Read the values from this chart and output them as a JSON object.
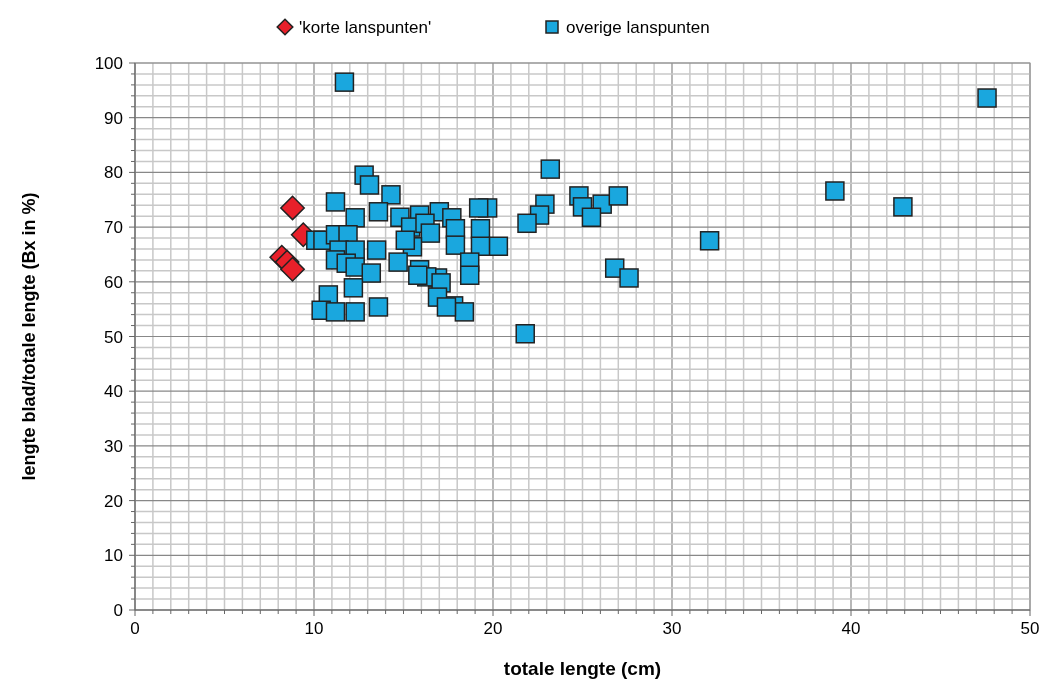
{
  "chart_data": {
    "type": "scatter",
    "xlabel": "totale lengte (cm)",
    "ylabel": "lengte blad/totale lengte (Bx in %)",
    "xlim": [
      0,
      50
    ],
    "ylim": [
      0,
      100
    ],
    "xticks": [
      0,
      {
        "value": 1,
        "label": null
      },
      {
        "value": 2,
        "label": null
      },
      {
        "value": 3,
        "label": null
      },
      {
        "value": 4,
        "label": null
      },
      {
        "value": 5,
        "label": null
      },
      {
        "value": 6,
        "label": null
      },
      {
        "value": 7,
        "label": null
      },
      {
        "value": 8,
        "label": null
      },
      {
        "value": 9,
        "label": null
      },
      10,
      {
        "value": 11,
        "label": null
      },
      {
        "value": 12,
        "label": null
      },
      {
        "value": 13,
        "label": null
      },
      {
        "value": 14,
        "label": null
      },
      {
        "value": 15,
        "label": null
      },
      {
        "value": 16,
        "label": null
      },
      {
        "value": 17,
        "label": null
      },
      {
        "value": 18,
        "label": null
      },
      {
        "value": 19,
        "label": null
      },
      20,
      {
        "value": 21,
        "label": null
      },
      {
        "value": 22,
        "label": null
      },
      {
        "value": 23,
        "label": null
      },
      {
        "value": 24,
        "label": null
      },
      {
        "value": 25,
        "label": null
      },
      {
        "value": 26,
        "label": null
      },
      {
        "value": 27,
        "label": null
      },
      {
        "value": 28,
        "label": null
      },
      {
        "value": 29,
        "label": null
      },
      30,
      {
        "value": 31,
        "label": null
      },
      {
        "value": 32,
        "label": null
      },
      {
        "value": 33,
        "label": null
      },
      {
        "value": 34,
        "label": null
      },
      {
        "value": 35,
        "label": null
      },
      {
        "value": 36,
        "label": null
      },
      {
        "value": 37,
        "label": null
      },
      {
        "value": 38,
        "label": null
      },
      {
        "value": 39,
        "label": null
      },
      40,
      {
        "value": 41,
        "label": null
      },
      {
        "value": 42,
        "label": null
      },
      {
        "value": 43,
        "label": null
      },
      {
        "value": 44,
        "label": null
      },
      {
        "value": 45,
        "label": null
      },
      {
        "value": 46,
        "label": null
      },
      {
        "value": 47,
        "label": null
      },
      {
        "value": 48,
        "label": null
      },
      {
        "value": 49,
        "label": null
      },
      50
    ],
    "yticks": [
      0,
      {
        "value": 2,
        "label": null
      },
      {
        "value": 4,
        "label": null
      },
      {
        "value": 6,
        "label": null
      },
      {
        "value": 8,
        "label": null
      },
      10,
      {
        "value": 12,
        "label": null
      },
      {
        "value": 14,
        "label": null
      },
      {
        "value": 16,
        "label": null
      },
      {
        "value": 18,
        "label": null
      },
      20,
      {
        "value": 22,
        "label": null
      },
      {
        "value": 24,
        "label": null
      },
      {
        "value": 26,
        "label": null
      },
      {
        "value": 28,
        "label": null
      },
      30,
      {
        "value": 32,
        "label": null
      },
      {
        "value": 34,
        "label": null
      },
      {
        "value": 36,
        "label": null
      },
      {
        "value": 38,
        "label": null
      },
      40,
      {
        "value": 42,
        "label": null
      },
      {
        "value": 44,
        "label": null
      },
      {
        "value": 46,
        "label": null
      },
      {
        "value": 48,
        "label": null
      },
      50,
      {
        "value": 52,
        "label": null
      },
      {
        "value": 54,
        "label": null
      },
      {
        "value": 56,
        "label": null
      },
      {
        "value": 58,
        "label": null
      },
      60,
      {
        "value": 62,
        "label": null
      },
      {
        "value": 64,
        "label": null
      },
      {
        "value": 66,
        "label": null
      },
      {
        "value": 68,
        "label": null
      },
      70,
      {
        "value": 72,
        "label": null
      },
      {
        "value": 74,
        "label": null
      },
      {
        "value": 76,
        "label": null
      },
      {
        "value": 78,
        "label": null
      },
      80,
      {
        "value": 82,
        "label": null
      },
      {
        "value": 84,
        "label": null
      },
      {
        "value": 86,
        "label": null
      },
      {
        "value": 88,
        "label": null
      },
      90,
      {
        "value": 92,
        "label": null
      },
      {
        "value": 94,
        "label": null
      },
      {
        "value": 96,
        "label": null
      },
      {
        "value": 98,
        "label": null
      },
      100
    ],
    "grid": true,
    "legend": "top",
    "series": [
      {
        "name": "'korte lanspunten'",
        "color": "#e8202a",
        "marker": "diamond",
        "x": [
          8.8,
          9.4,
          8.2,
          8.5,
          8.8
        ],
        "values": [
          73.5,
          68.6,
          64.5,
          63.6,
          62.3
        ]
      },
      {
        "name": "overige lanspunten",
        "color": "#1aa7de",
        "marker": "square",
        "x": [
          11.7,
          47.6,
          23.2,
          12.8,
          13.1,
          14.3,
          11.2,
          24.8,
          25.0,
          22.9,
          26.1,
          27.0,
          25.5,
          22.6,
          21.9,
          19.7,
          19.2,
          39.1,
          42.9,
          32.1,
          26.8,
          27.6,
          21.8,
          12.3,
          13.6,
          14.8,
          15.9,
          17.0,
          17.7,
          17.9,
          19.3,
          20.3,
          19.3,
          17.9,
          18.7,
          18.7,
          17.8,
          18.4,
          16.9,
          15.4,
          16.2,
          16.5,
          10.1,
          10.5,
          11.2,
          11.9,
          11.4,
          12.3,
          13.5,
          15.5,
          15.1,
          11.2,
          11.8,
          12.3,
          13.2,
          14.7,
          15.9,
          16.3,
          17.1,
          12.2,
          10.8,
          10.4,
          11.2,
          12.3,
          13.6,
          15.8,
          16.9,
          17.4
        ],
        "values": [
          96.5,
          93.6,
          80.6,
          79.5,
          77.7,
          75.9,
          74.6,
          75.7,
          73.7,
          74.2,
          74.2,
          75.7,
          71.8,
          72.2,
          70.7,
          73.5,
          73.5,
          76.6,
          73.7,
          67.5,
          62.5,
          60.7,
          50.5,
          71.7,
          72.8,
          71.8,
          72.2,
          72.8,
          71.7,
          69.7,
          69.7,
          66.5,
          66.5,
          66.7,
          63.6,
          61.2,
          55.6,
          54.5,
          60.7,
          70.0,
          70.7,
          68.9,
          67.6,
          67.6,
          68.6,
          68.6,
          65.8,
          65.8,
          65.8,
          66.4,
          67.6,
          64.0,
          63.4,
          62.7,
          61.6,
          63.6,
          62.2,
          60.9,
          59.8,
          58.9,
          57.6,
          54.8,
          54.5,
          54.5,
          55.4,
          61.2,
          57.2,
          55.4
        ]
      }
    ]
  }
}
